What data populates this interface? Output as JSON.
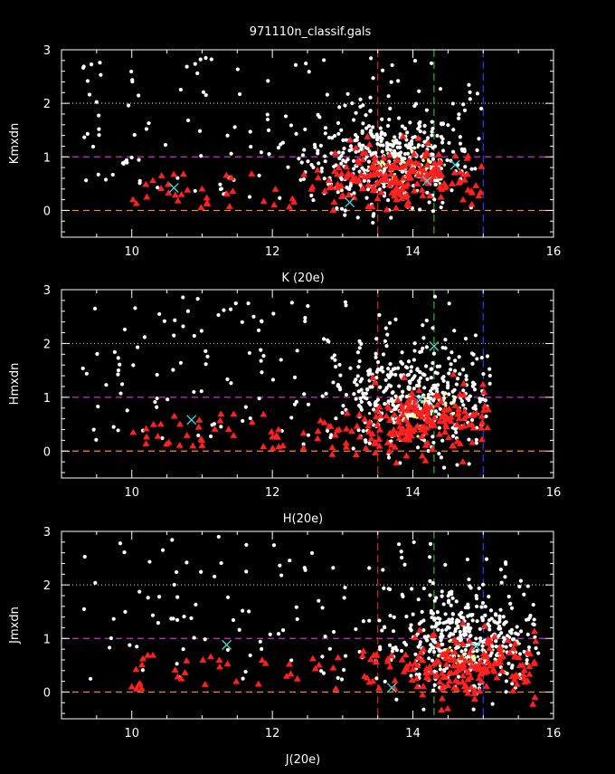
{
  "figure_title": "971110n_classif.gals",
  "colors": {
    "background": "#000000",
    "axes": "#ffffff",
    "galaxy_points": "#ffffff",
    "red_triangles": "#ff2020",
    "cyan_crosses": "#40e0e0",
    "yellow_points": "#ffff80",
    "line_y0": "#ff8c1a",
    "line_y1": "#cc33cc",
    "line_y2": "#bbbbbb",
    "line_x13_5": "#e02020",
    "line_x14_3": "#20c020",
    "line_x15": "#2040ff"
  },
  "chart_data": [
    {
      "type": "scatter",
      "title": "",
      "xlabel": "K (20e)",
      "ylabel": "Kmxdn",
      "xlim": [
        9,
        16
      ],
      "ylim": [
        -0.5,
        3
      ],
      "xticks": [
        10,
        12,
        14,
        16
      ],
      "yticks": [
        0,
        1,
        2,
        3
      ],
      "hlines": [
        0,
        1,
        2
      ],
      "vlines": [
        13.5,
        14.3,
        15
      ],
      "grid": false,
      "cluster": {
        "white_center": [
          13.6,
          0.95
        ],
        "white_spread": [
          0.55,
          0.45
        ],
        "red_center": [
          13.9,
          0.6
        ],
        "red_spread": [
          0.6,
          0.28
        ],
        "x_max": 15.0
      },
      "cyan_points": [
        [
          10.6,
          0.42
        ],
        [
          13.1,
          0.15
        ],
        [
          14.6,
          0.85
        ],
        [
          14.2,
          0.55
        ]
      ]
    },
    {
      "type": "scatter",
      "title": "",
      "xlabel": "H(20e)",
      "ylabel": "Hmxdn",
      "xlim": [
        9,
        16
      ],
      "ylim": [
        -0.5,
        3
      ],
      "xticks": [
        10,
        12,
        14,
        16
      ],
      "yticks": [
        0,
        1,
        2,
        3
      ],
      "hlines": [
        0,
        1,
        2
      ],
      "vlines": [
        13.5,
        14.3,
        15
      ],
      "grid": false,
      "cluster": {
        "white_center": [
          14.0,
          1.0
        ],
        "white_spread": [
          0.55,
          0.5
        ],
        "red_center": [
          14.1,
          0.55
        ],
        "red_spread": [
          0.55,
          0.3
        ],
        "x_max": 15.1
      },
      "cyan_points": [
        [
          10.85,
          0.58
        ],
        [
          14.1,
          0.95
        ],
        [
          14.3,
          1.95
        ]
      ]
    },
    {
      "type": "scatter",
      "title": "",
      "xlabel": "J(20e)",
      "ylabel": "Jmxdn",
      "xlim": [
        9,
        16
      ],
      "ylim": [
        -0.5,
        3
      ],
      "xticks": [
        10,
        12,
        14,
        16
      ],
      "yticks": [
        0,
        1,
        2,
        3
      ],
      "hlines": [
        0,
        1,
        2
      ],
      "vlines": [
        13.5,
        14.3,
        15
      ],
      "grid": false,
      "cluster": {
        "white_center": [
          14.7,
          0.95
        ],
        "white_spread": [
          0.55,
          0.5
        ],
        "red_center": [
          14.8,
          0.5
        ],
        "red_spread": [
          0.5,
          0.3
        ],
        "x_max": 15.8
      },
      "cyan_points": [
        [
          11.35,
          0.88
        ],
        [
          13.7,
          0.08
        ],
        [
          14.9,
          0.85
        ]
      ]
    }
  ]
}
